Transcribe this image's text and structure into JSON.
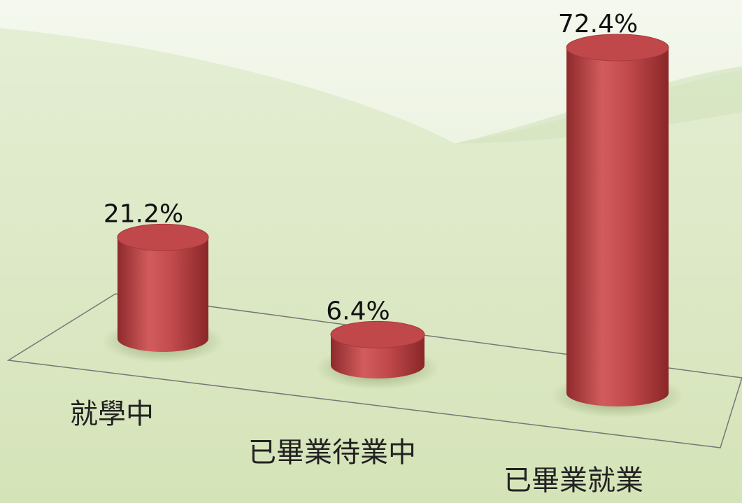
{
  "chart_data": {
    "type": "bar",
    "categories": [
      "就學中",
      "已畢業待業中",
      "已畢業就業"
    ],
    "values": [
      21.2,
      6.4,
      72.4
    ],
    "value_labels": [
      "21.2%",
      "6.4%",
      "72.4%"
    ],
    "color": "#c0484a"
  }
}
